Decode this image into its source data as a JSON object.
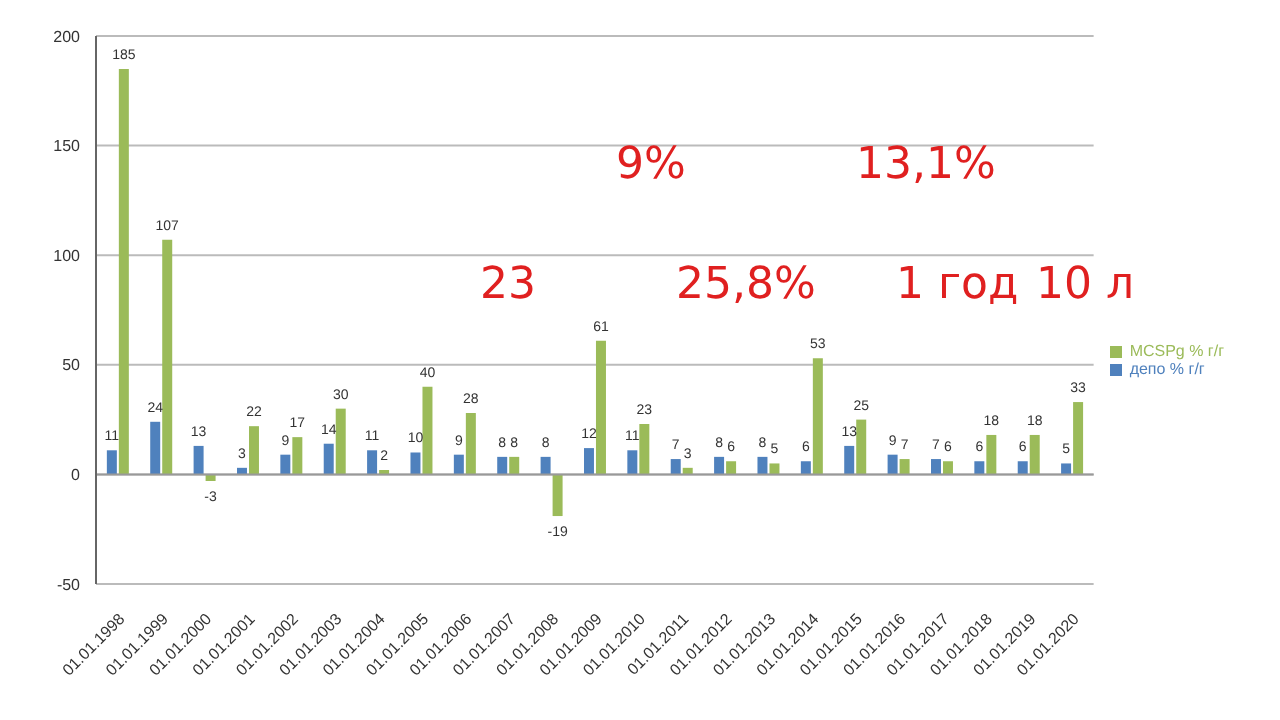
{
  "chart_data": {
    "type": "bar",
    "categories": [
      "01.01.1998",
      "01.01.1999",
      "01.01.2000",
      "01.01.2001",
      "01.01.2002",
      "01.01.2003",
      "01.01.2004",
      "01.01.2005",
      "01.01.2006",
      "01.01.2007",
      "01.01.2008",
      "01.01.2009",
      "01.01.2010",
      "01.01.2011",
      "01.01.2012",
      "01.01.2013",
      "01.01.2014",
      "01.01.2015",
      "01.01.2016",
      "01.01.2017",
      "01.01.2018",
      "01.01.2019",
      "01.01.2020"
    ],
    "series": [
      {
        "name": "депо % г/г",
        "color": "#4f81bd",
        "values": [
          11,
          24,
          13,
          3,
          9,
          14,
          11,
          10,
          9,
          8,
          8,
          12,
          11,
          7,
          8,
          8,
          6,
          13,
          9,
          7,
          6,
          6,
          5
        ]
      },
      {
        "name": "MCSPg % г/г",
        "color": "#9bbb59",
        "values": [
          185,
          107,
          -3,
          22,
          17,
          30,
          2,
          40,
          28,
          8,
          -19,
          61,
          23,
          3,
          6,
          5,
          53,
          25,
          7,
          6,
          18,
          18,
          33
        ]
      }
    ],
    "ylim": [
      -50,
      200
    ],
    "yticks": [
      -50,
      0,
      50,
      100,
      150,
      200
    ],
    "grid": "y",
    "legend": "right",
    "data_labels": true,
    "annotations": [
      "9%",
      "13,1%",
      "23",
      "25,8%",
      "1 год",
      "10 л"
    ]
  }
}
